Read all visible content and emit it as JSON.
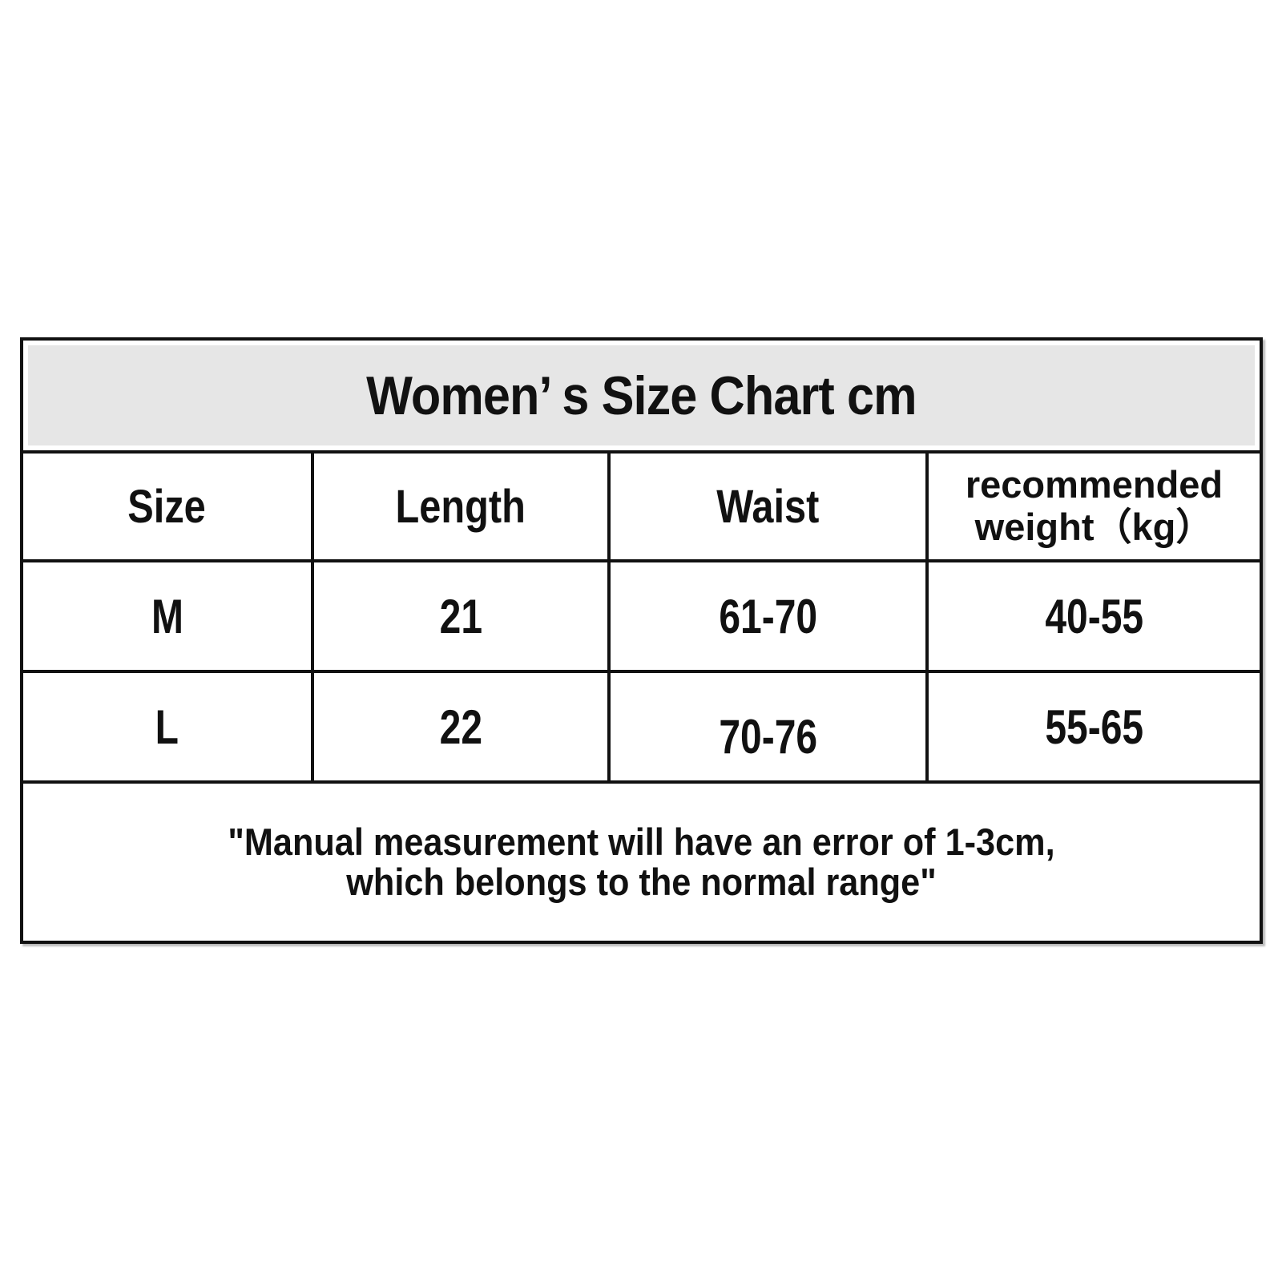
{
  "title": "Women’ s Size Chart cm",
  "colors": {
    "page_bg": "#ffffff",
    "title_bg": "#e6e6e6",
    "border": "#111111",
    "text": "#111111"
  },
  "header": {
    "size": "Size",
    "length": "Length",
    "waist": "Waist",
    "weight_line1": "recommended",
    "weight_line2": "weight（kg）"
  },
  "rows": [
    {
      "size": "M",
      "length": "21",
      "waist": "61-70",
      "weight": "40-55"
    },
    {
      "size": "L",
      "length": "22",
      "waist": "70-76",
      "weight": "55-65"
    }
  ],
  "note": {
    "line1": "\"Manual measurement will have an error of 1-3cm,",
    "line2": "which belongs to the normal range\""
  }
}
